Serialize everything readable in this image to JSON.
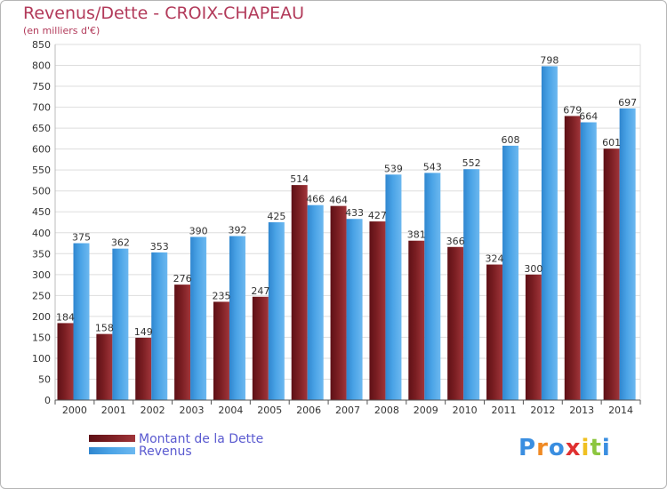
{
  "title": "Revenus/Dette - CROIX-CHAPEAU",
  "subtitle": "(en milliers d'€)",
  "logo": {
    "text": "Proxiti",
    "letters": [
      "P",
      "r",
      "o",
      "x",
      "i",
      "t",
      "i"
    ],
    "colors": [
      "#3a8ee0",
      "#f08a24",
      "#3a8ee0",
      "#e03030",
      "#f0c020",
      "#8cc63f",
      "#3a8ee0"
    ]
  },
  "colors": {
    "dette": "#7a1e22",
    "revenus": "#4aa3e6",
    "grid": "#dddddd",
    "axis": "#555555",
    "text": "#333333",
    "title": "#b23a5a",
    "legend_text": "#5a5ad0"
  },
  "chart_data": {
    "type": "bar",
    "title": "Revenus/Dette - CROIX-CHAPEAU",
    "subtitle": "(en milliers d'€)",
    "categories": [
      "2000",
      "2001",
      "2002",
      "2003",
      "2004",
      "2005",
      "2006",
      "2007",
      "2008",
      "2009",
      "2010",
      "2011",
      "2012",
      "2013",
      "2014"
    ],
    "series": [
      {
        "name": "Montant de la Dette",
        "values": [
          184,
          158,
          149,
          276,
          235,
          247,
          514,
          464,
          427,
          381,
          366,
          324,
          300,
          679,
          601
        ]
      },
      {
        "name": "Revenus",
        "values": [
          375,
          362,
          353,
          390,
          392,
          425,
          466,
          433,
          539,
          543,
          552,
          608,
          798,
          664,
          697
        ]
      }
    ],
    "ylim": [
      0,
      850
    ],
    "yticks": [
      0,
      50,
      100,
      150,
      200,
      250,
      300,
      350,
      400,
      450,
      500,
      550,
      600,
      650,
      700,
      750,
      800,
      850
    ],
    "grid": true,
    "legend": "bottom-left"
  }
}
